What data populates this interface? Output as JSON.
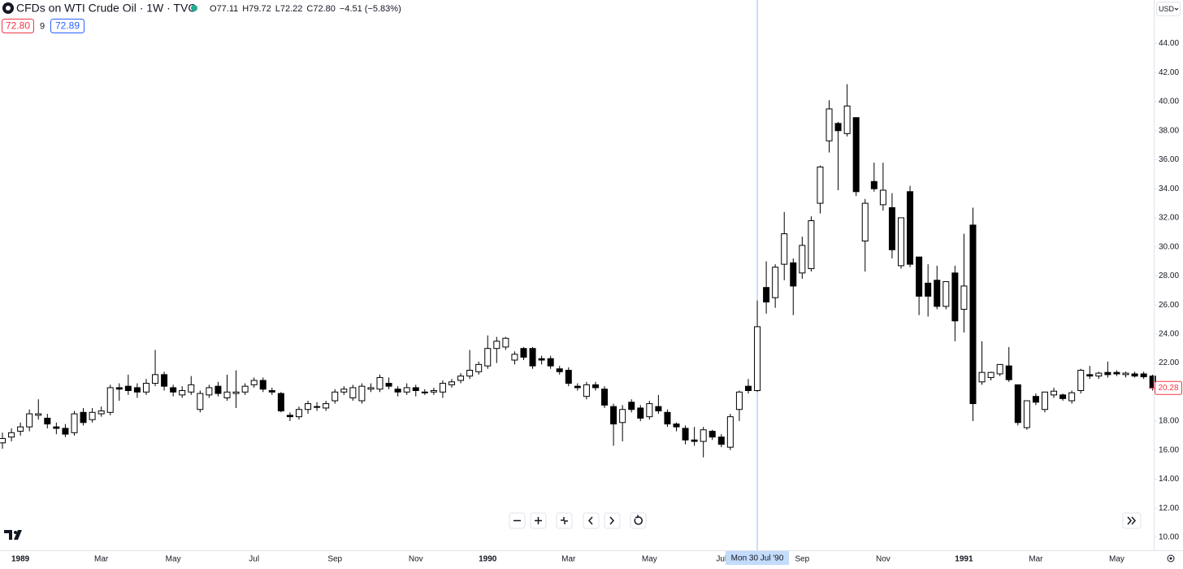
{
  "header": {
    "symbol": "CFDs on WTI Crude Oil · 1W · TVC",
    "ohlc": [
      {
        "key": "O",
        "value": "77.11"
      },
      {
        "key": "H",
        "value": "79.72"
      },
      {
        "key": "L",
        "value": "72.22"
      },
      {
        "key": "C",
        "value": "72.80"
      }
    ],
    "change": "−4.51 (−5.83%)",
    "sell": "72.80",
    "spread": "9",
    "buy": "72.89"
  },
  "currency": "USD",
  "chart_data": {
    "type": "candlestick",
    "categories": [
      null,
      null,
      "1989",
      null,
      null,
      null,
      null,
      null,
      null,
      null,
      null,
      "Mar",
      null,
      null,
      null,
      null,
      null,
      null,
      null,
      "May",
      null,
      null,
      null,
      null,
      null,
      null,
      null,
      null,
      "Jul",
      null,
      null,
      null,
      null,
      null,
      null,
      null,
      null,
      "Sep",
      null,
      null,
      null,
      null,
      null,
      null,
      null,
      null,
      "Nov",
      null,
      null,
      null,
      null,
      null,
      null,
      null,
      "1990",
      null,
      null,
      null,
      null,
      null,
      null,
      null,
      null,
      "Mar",
      null,
      null,
      null,
      null,
      null,
      null,
      null,
      null,
      "May",
      null,
      null,
      null,
      null,
      null,
      null,
      null,
      "Jul",
      null,
      null,
      null,
      null,
      null,
      null,
      null,
      null,
      "Sep",
      null,
      null,
      null,
      null,
      null,
      null,
      null,
      null,
      "Nov",
      null,
      null,
      null,
      null,
      null,
      null,
      null,
      null,
      "1991",
      null,
      null,
      null,
      null,
      null,
      null,
      null,
      "Mar",
      null,
      null,
      null,
      null,
      null,
      null,
      null,
      null,
      "May",
      null,
      null,
      null,
      null
    ],
    "open": [
      16.5,
      16.9,
      17.3,
      17.6,
      18.4,
      18.2,
      17.6,
      17.5,
      17.2,
      18.6,
      18.1,
      18.5,
      18.6,
      20.3,
      20.4,
      20.3,
      20.0,
      20.6,
      21.2,
      20.3,
      19.8,
      20.0,
      18.8,
      19.8,
      20.4,
      19.6,
      19.9,
      20.0,
      20.5,
      20.8,
      20.1,
      19.9,
      18.4,
      18.3,
      18.8,
      19.0,
      18.9,
      19.4,
      20.0,
      19.6,
      19.4,
      20.2,
      20.2,
      20.6,
      20.2,
      20.0,
      20.3,
      20.0,
      20.0,
      20.0,
      20.5,
      20.8,
      21.1,
      21.4,
      21.8,
      23.0,
      23.1,
      22.2,
      23.0,
      23.0,
      22.3,
      22.3,
      21.6,
      21.5,
      20.4,
      19.7,
      20.5,
      20.2,
      19.0,
      17.9,
      19.3,
      18.9,
      18.3,
      19.0,
      18.6,
      17.8,
      17.5,
      16.7,
      16.6,
      17.3,
      16.9,
      16.2,
      18.8,
      20.4,
      20.1,
      27.2,
      26.5,
      28.8,
      28.9,
      28.2,
      28.5,
      33.0,
      37.3,
      38.5,
      37.8,
      38.9,
      30.4,
      34.5,
      32.9,
      32.7,
      28.7,
      33.8,
      29.3,
      27.5,
      27.7,
      25.9,
      28.2,
      25.7,
      31.5,
      20.7,
      21.0,
      21.25,
      21.8,
      20.5,
      17.55,
      19.7,
      18.8,
      19.8,
      19.8,
      19.4,
      20.1,
      21.2,
      21.1,
      21.35,
      21.35,
      21.2,
      21.25,
      21.25,
      21.1
    ],
    "high": [
      17.2,
      17.5,
      17.9,
      18.8,
      19.5,
      18.5,
      17.9,
      17.8,
      18.7,
      18.9,
      18.9,
      19.0,
      20.5,
      20.6,
      21.2,
      20.6,
      20.9,
      22.9,
      21.4,
      20.5,
      20.4,
      21.1,
      20.1,
      20.5,
      20.7,
      21.2,
      21.5,
      20.6,
      21.0,
      21.0,
      20.3,
      20.0,
      18.6,
      19.0,
      19.4,
      19.3,
      19.4,
      20.2,
      20.4,
      20.5,
      20.6,
      20.6,
      21.2,
      21.0,
      20.4,
      20.6,
      20.5,
      20.2,
      20.3,
      20.8,
      20.9,
      21.3,
      22.9,
      22.1,
      23.9,
      23.8,
      23.8,
      22.8,
      23.1,
      23.1,
      22.5,
      22.5,
      21.8,
      21.7,
      20.6,
      20.7,
      20.7,
      20.4,
      19.2,
      19.1,
      19.5,
      19.1,
      19.4,
      19.8,
      18.8,
      17.9,
      17.7,
      17.6,
      17.6,
      17.4,
      17.1,
      18.5,
      20.1,
      20.9,
      26.3,
      29.0,
      28.8,
      32.4,
      29.2,
      30.7,
      32.1,
      35.6,
      40.1,
      38.6,
      41.2,
      38.9,
      33.3,
      35.8,
      35.8,
      33.7,
      32.0,
      34.2,
      29.3,
      28.8,
      28.7,
      27.6,
      28.7,
      30.9,
      32.7,
      23.5,
      21.4,
      21.9,
      23.1,
      20.5,
      19.4,
      19.9,
      20.0,
      20.3,
      19.9,
      20.1,
      21.6,
      21.8,
      21.4,
      22.1,
      21.5,
      21.4,
      21.4,
      21.4,
      21.2
    ],
    "low": [
      16.1,
      16.6,
      17.0,
      17.3,
      18.1,
      17.5,
      17.1,
      16.9,
      17.0,
      17.7,
      17.9,
      18.3,
      18.4,
      19.4,
      19.8,
      19.6,
      19.8,
      20.4,
      20.1,
      19.7,
      19.6,
      19.8,
      18.6,
      19.6,
      19.7,
      19.4,
      18.9,
      19.8,
      20.3,
      20.0,
      19.8,
      18.6,
      18.0,
      18.1,
      18.5,
      18.7,
      18.7,
      19.2,
      19.8,
      19.4,
      19.2,
      20.0,
      20.0,
      20.2,
      19.7,
      19.8,
      19.7,
      19.8,
      19.8,
      19.6,
      20.3,
      20.6,
      20.9,
      21.2,
      21.6,
      22.0,
      22.9,
      21.9,
      22.2,
      21.6,
      21.9,
      21.6,
      21.2,
      20.4,
      20.1,
      19.5,
      20.1,
      18.9,
      16.3,
      16.6,
      18.6,
      18.0,
      18.1,
      18.5,
      17.6,
      17.3,
      16.4,
      16.3,
      15.5,
      16.7,
      16.2,
      16.0,
      18.0,
      19.9,
      20.0,
      25.4,
      25.8,
      27.7,
      25.3,
      27.8,
      28.3,
      32.3,
      36.5,
      33.9,
      37.6,
      33.5,
      28.3,
      33.8,
      32.5,
      29.2,
      28.5,
      28.6,
      25.3,
      25.2,
      25.7,
      25.7,
      23.5,
      24.1,
      18.0,
      20.5,
      20.8,
      21.1,
      20.7,
      17.7,
      17.4,
      19.1,
      18.6,
      19.6,
      19.4,
      19.2,
      19.9,
      20.9,
      20.9,
      21.0,
      21.1,
      21.0,
      21.0,
      20.9,
      20.1
    ],
    "close": [
      16.8,
      17.2,
      17.6,
      18.5,
      18.5,
      17.8,
      17.5,
      17.1,
      18.5,
      17.9,
      18.6,
      18.7,
      20.3,
      20.2,
      20.1,
      20.0,
      20.6,
      21.2,
      20.4,
      20.0,
      20.1,
      20.5,
      19.9,
      20.3,
      19.9,
      20.0,
      20.0,
      20.4,
      20.8,
      20.2,
      20.0,
      18.7,
      18.3,
      18.8,
      19.2,
      19.0,
      19.2,
      20.0,
      20.2,
      20.3,
      20.4,
      20.3,
      21.0,
      20.4,
      20.0,
      20.3,
      20.1,
      20.0,
      20.1,
      20.6,
      20.7,
      21.1,
      21.5,
      21.9,
      23.0,
      23.5,
      23.7,
      22.6,
      22.4,
      21.8,
      22.2,
      21.8,
      21.4,
      20.6,
      20.3,
      20.5,
      20.3,
      19.1,
      17.8,
      18.8,
      18.8,
      18.2,
      19.2,
      18.7,
      17.8,
      17.6,
      16.7,
      16.6,
      17.4,
      16.9,
      16.4,
      18.3,
      20.0,
      20.1,
      24.5,
      26.2,
      28.6,
      30.9,
      27.3,
      30.1,
      31.8,
      35.5,
      39.5,
      38.0,
      39.7,
      33.8,
      33.0,
      34.0,
      33.9,
      29.8,
      32.0,
      28.8,
      26.6,
      26.6,
      25.9,
      27.6,
      24.9,
      27.3,
      19.2,
      21.35,
      21.35,
      21.9,
      20.85,
      17.9,
      19.4,
      19.3,
      20.0,
      20.06,
      19.55,
      19.95,
      21.5,
      21.1,
      21.3,
      21.2,
      21.25,
      21.3,
      21.1,
      21.05,
      20.28
    ],
    "up_color": "#ffffff",
    "down_color": "#000000",
    "wick_color": "#000000",
    "ylim": [
      9.1,
      47.0
    ],
    "yticks": [
      {
        "value": 10,
        "label": "10.00"
      },
      {
        "value": 12,
        "label": "12.00"
      },
      {
        "value": 14,
        "label": "14.00"
      },
      {
        "value": 16,
        "label": "16.00"
      },
      {
        "value": 18,
        "label": "18.00"
      },
      {
        "value": 20,
        "label": "20.00"
      },
      {
        "value": 22,
        "label": "22.00"
      },
      {
        "value": 24,
        "label": "24.00"
      },
      {
        "value": 26,
        "label": "26.00"
      },
      {
        "value": 28,
        "label": "28.00"
      },
      {
        "value": 30,
        "label": "30.00"
      },
      {
        "value": 32,
        "label": "32.00"
      },
      {
        "value": 34,
        "label": "34.00"
      },
      {
        "value": 36,
        "label": "36.00"
      },
      {
        "value": 38,
        "label": "38.00"
      },
      {
        "value": 40,
        "label": "40.00"
      },
      {
        "value": 42,
        "label": "42.00"
      },
      {
        "value": 44,
        "label": "44.00"
      }
    ],
    "last_price": {
      "value": 20.28,
      "label": "20.28",
      "color": "#f23645"
    },
    "crosshair": {
      "label": "Mon 30 Jul '90",
      "color": "#90bff9"
    },
    "grid": false
  }
}
